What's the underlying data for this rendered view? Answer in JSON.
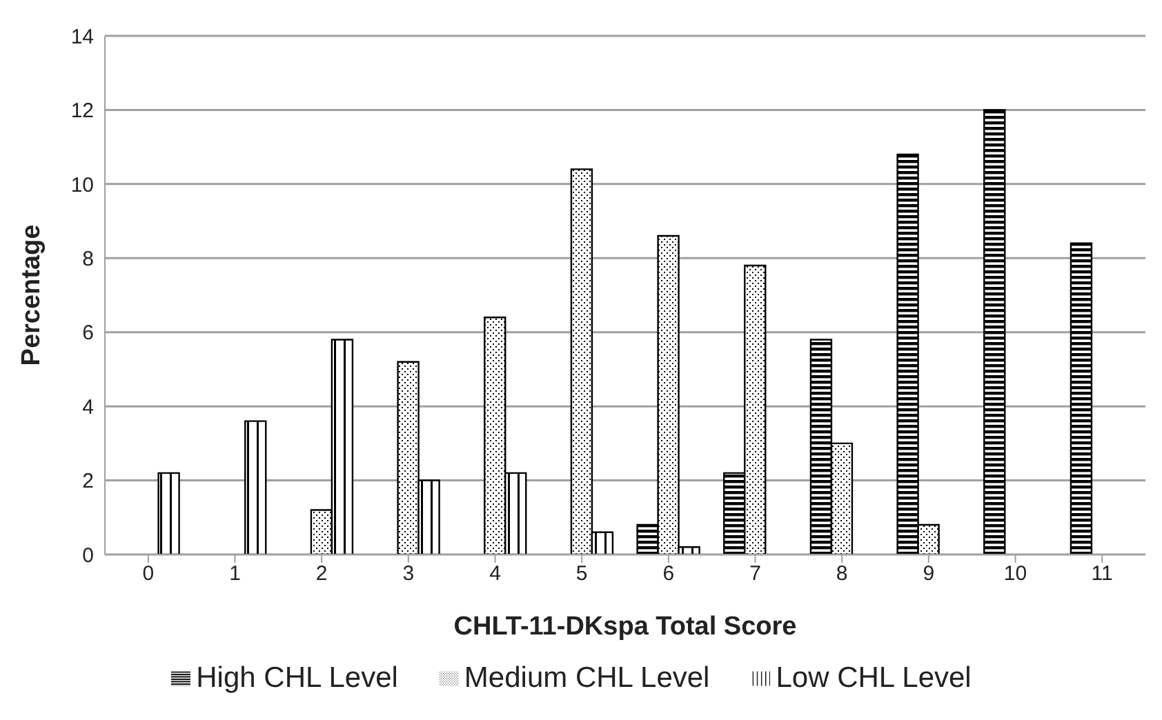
{
  "chart_data": {
    "type": "bar",
    "xlabel": "CHLT-11-DKspa Total Score",
    "ylabel": "Percentage",
    "categories": [
      "0",
      "1",
      "2",
      "3",
      "4",
      "5",
      "6",
      "7",
      "8",
      "9",
      "10",
      "11"
    ],
    "series": [
      {
        "name": "High CHL Level",
        "color": "#000000",
        "values": [
          null,
          null,
          null,
          null,
          null,
          null,
          0.8,
          2.2,
          5.8,
          10.8,
          12,
          8.4
        ]
      },
      {
        "name": "Medium CHL Level",
        "color": "#000000",
        "values": [
          null,
          null,
          1.2,
          5.2,
          6.4,
          10.4,
          8.6,
          7.8,
          3,
          0.8,
          null,
          null
        ]
      },
      {
        "name": "Low CHL Level",
        "color": "#000000",
        "values": [
          2.2,
          3.6,
          5.8,
          2,
          2.2,
          0.6,
          0.2,
          null,
          null,
          null,
          null,
          null
        ]
      }
    ],
    "ylim": [
      0,
      14
    ],
    "yticks": [
      0,
      2,
      4,
      6,
      8,
      10,
      12,
      14
    ],
    "grid": "y",
    "legend": "bottom"
  }
}
